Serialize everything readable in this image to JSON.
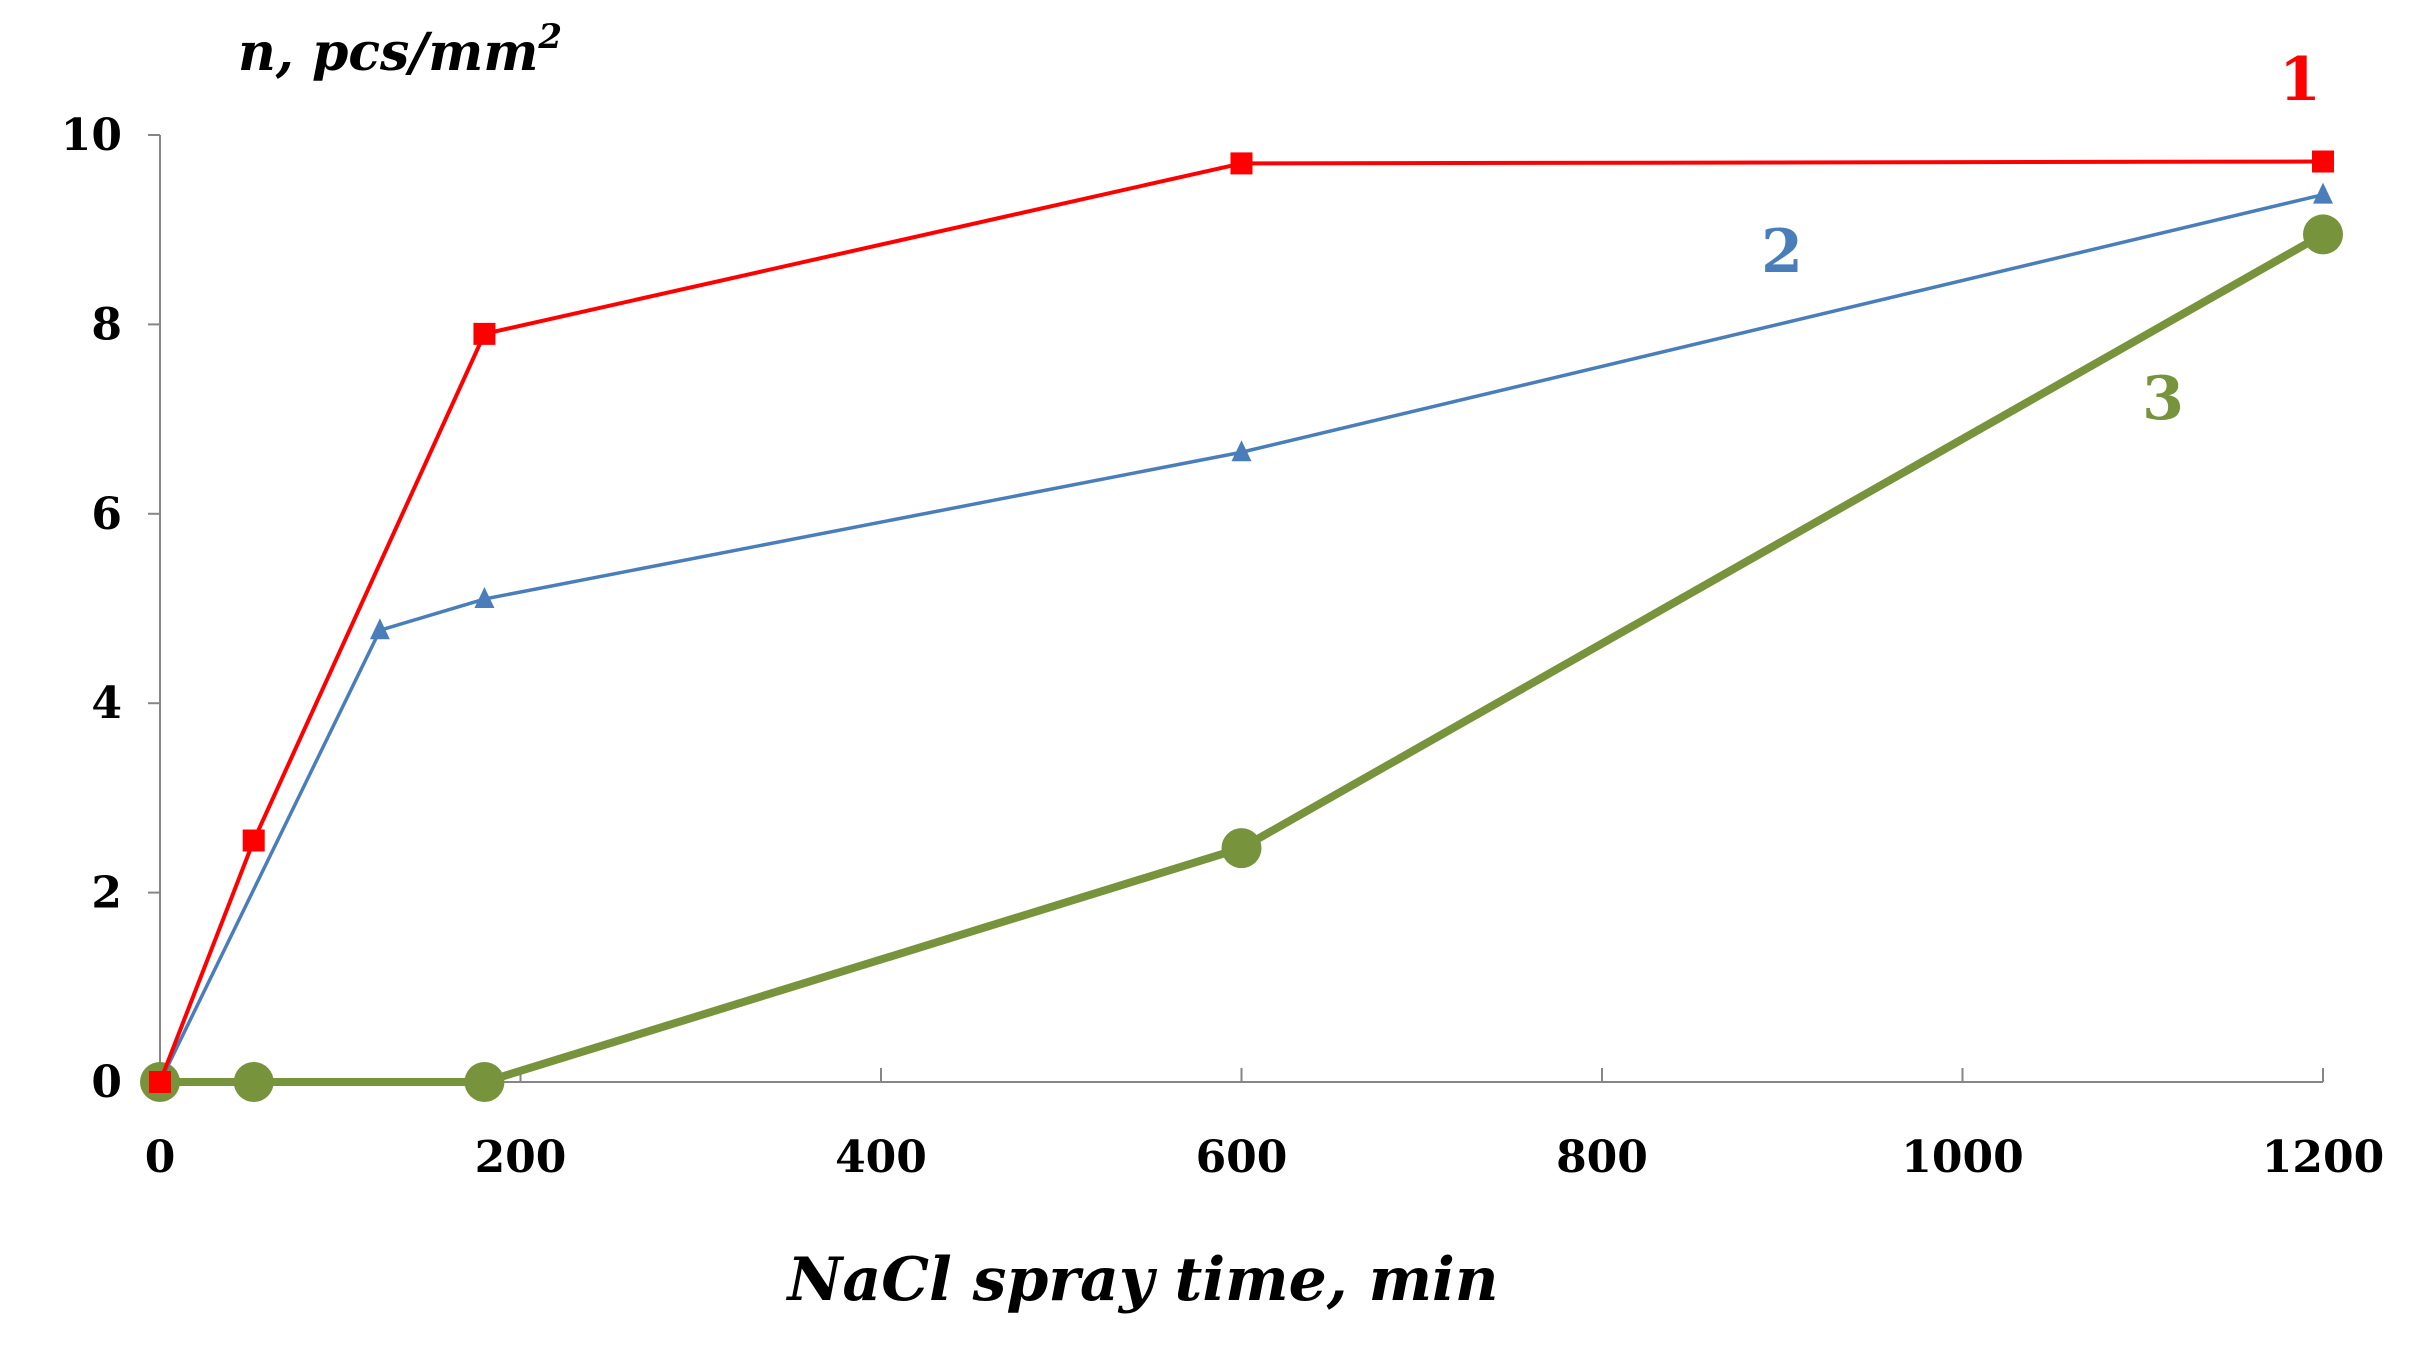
{
  "chart_data": {
    "type": "line",
    "xlabel": "NaCl spray time, min",
    "ylabel": "n, pcs/mm",
    "ylabel_superscript": "2",
    "xlim": [
      0,
      1200
    ],
    "ylim": [
      0,
      10
    ],
    "xticks": [
      "0",
      "200",
      "400",
      "600",
      "800",
      "1000",
      "1200"
    ],
    "yticks": [
      "0",
      "2",
      "4",
      "6",
      "8",
      "10"
    ],
    "grid": false,
    "legend": "none",
    "series": [
      {
        "name": "1",
        "color": "#ff0000",
        "marker": "square",
        "x": [
          0,
          52,
          180,
          600,
          1200
        ],
        "y": [
          0,
          2.55,
          7.9,
          9.7,
          9.72
        ]
      },
      {
        "name": "2",
        "color": "#4a7ebb",
        "marker": "triangle",
        "x": [
          0,
          122,
          180,
          600,
          1200
        ],
        "y": [
          0,
          4.77,
          5.1,
          6.65,
          9.37
        ]
      },
      {
        "name": "3",
        "color": "#77933c",
        "marker": "circle",
        "x": [
          0,
          52,
          180,
          600,
          1200
        ],
        "y": [
          0,
          0,
          0,
          2.47,
          8.95
        ]
      }
    ]
  }
}
